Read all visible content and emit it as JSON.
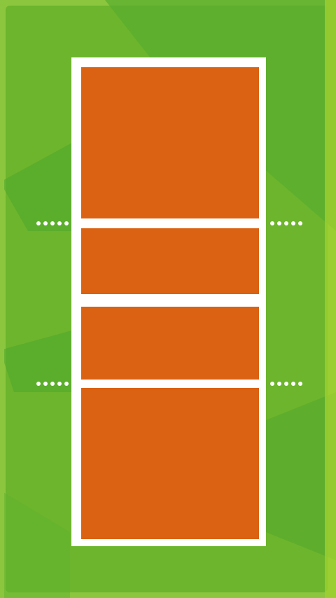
{
  "colors": {
    "grass_light": "#8cc63f",
    "grass_mid": "#6cb52c",
    "grass_dark": "#4fa62e",
    "court_surface": "#db6213",
    "lines": "#ffffff"
  },
  "court": {
    "sections": [
      "back-zone-top",
      "front-zone-top",
      "front-zone-bottom",
      "back-zone-bottom"
    ],
    "attack_line_markers": 4
  }
}
